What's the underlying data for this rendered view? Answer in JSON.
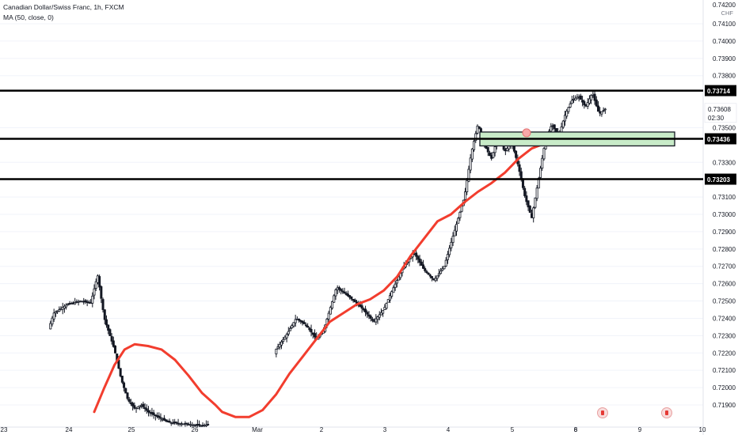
{
  "legend": {
    "symbol_line": "Canadian Dollar/Swiss Franc, 1h, FXCM",
    "indicator_line": "MA (50, close, 0)"
  },
  "price_axis": {
    "currency": "CHF",
    "ticks": [
      "0.74100",
      "0.74000",
      "0.73900",
      "0.73800",
      "0.73500",
      "0.73300",
      "0.73100",
      "0.73000",
      "0.72900",
      "0.72800",
      "0.72700",
      "0.72600",
      "0.72500",
      "0.72400",
      "0.72300",
      "0.72200",
      "0.72100",
      "0.72000",
      "0.71900"
    ],
    "current_price_label": "0.73608",
    "countdown_label": "02:30",
    "top_partial_label": "0.74200"
  },
  "time_axis": {
    "ticks": [
      {
        "label": "23",
        "i": 0
      },
      {
        "label": "24",
        "i": 1
      },
      {
        "label": "25",
        "i": 2
      },
      {
        "label": "26",
        "i": 3
      },
      {
        "label": "Mar",
        "i": 4
      },
      {
        "label": "2",
        "i": 5
      },
      {
        "label": "3",
        "i": 6
      },
      {
        "label": "4",
        "i": 7
      },
      {
        "label": "5",
        "i": 8
      },
      {
        "label": "6",
        "i": 9
      },
      {
        "label": "8",
        "i": 10
      },
      {
        "label": "9",
        "i": 11
      },
      {
        "label": "10",
        "i": 12
      }
    ]
  },
  "levels": [
    {
      "price": 0.73714,
      "label": "0.73714"
    },
    {
      "price": 0.73436,
      "label": "0.73436"
    },
    {
      "price": 0.73203,
      "label": "0.73203"
    }
  ],
  "colors": {
    "up": "#26a69a",
    "down": "#26a69a",
    "candle": "#131722",
    "ma": "#f23d2e",
    "zone_fill": "#c8ebc8",
    "zone_border": "#131722",
    "level": "#000000",
    "axis_text": "#131722",
    "grid": "#f0f3fa"
  },
  "events": [
    {
      "icon": "canada-flag-icon"
    },
    {
      "icon": "canada-flag-icon"
    }
  ],
  "chart_data": {
    "type": "candlestick",
    "title": "Canadian Dollar/Swiss Franc, 1h, FXCM",
    "series": [
      {
        "name": "MA (50, close, 0)"
      }
    ],
    "ylim": [
      0.7185,
      0.7425
    ],
    "close_path": [
      [
        0,
        0.7188
      ],
      [
        0.05,
        0.7193
      ],
      [
        0.09,
        0.7205
      ],
      [
        0.13,
        0.7225
      ],
      [
        0.16,
        0.7243
      ],
      [
        0.2,
        0.7248
      ],
      [
        0.24,
        0.725
      ],
      [
        0.27,
        0.7249
      ],
      [
        0.29,
        0.7265
      ],
      [
        0.31,
        0.724
      ],
      [
        0.34,
        0.7222
      ],
      [
        0.36,
        0.7205
      ],
      [
        0.38,
        0.7193
      ],
      [
        0.4,
        0.7188
      ],
      [
        0.42,
        0.719
      ],
      [
        0.44,
        0.7186
      ],
      [
        0.5,
        0.718
      ],
      [
        0.6,
        0.7178
      ],
      [
        0.7,
        0.7182
      ],
      [
        0.76,
        0.7184
      ],
      [
        0.78,
        0.7195
      ],
      [
        0.8,
        0.721
      ],
      [
        0.82,
        0.7222
      ],
      [
        0.85,
        0.723
      ],
      [
        0.88,
        0.724
      ],
      [
        0.91,
        0.7236
      ],
      [
        0.94,
        0.7228
      ],
      [
        0.96,
        0.7232
      ],
      [
        0.98,
        0.7245
      ],
      [
        1.0,
        0.7258
      ],
      [
        1.04,
        0.7252
      ],
      [
        1.08,
        0.7245
      ],
      [
        1.11,
        0.7238
      ],
      [
        1.14,
        0.7245
      ],
      [
        1.17,
        0.7258
      ],
      [
        1.2,
        0.727
      ],
      [
        1.23,
        0.7278
      ],
      [
        1.26,
        0.7268
      ],
      [
        1.29,
        0.7262
      ],
      [
        1.32,
        0.727
      ],
      [
        1.35,
        0.729
      ],
      [
        1.38,
        0.731
      ],
      [
        1.4,
        0.7335
      ],
      [
        1.42,
        0.7352
      ],
      [
        1.44,
        0.734
      ],
      [
        1.46,
        0.7332
      ],
      [
        1.48,
        0.7345
      ],
      [
        1.5,
        0.7336
      ],
      [
        1.52,
        0.7342
      ],
      [
        1.54,
        0.7328
      ],
      [
        1.56,
        0.731
      ],
      [
        1.58,
        0.7298
      ],
      [
        1.6,
        0.732
      ],
      [
        1.62,
        0.7342
      ],
      [
        1.64,
        0.7352
      ],
      [
        1.66,
        0.7345
      ],
      [
        1.68,
        0.7358
      ],
      [
        1.7,
        0.7366
      ],
      [
        1.72,
        0.7368
      ],
      [
        1.74,
        0.7362
      ],
      [
        1.76,
        0.737
      ],
      [
        1.78,
        0.7358
      ],
      [
        1.8,
        0.7361
      ]
    ],
    "ma_path": [
      [
        0.28,
        0.7186
      ],
      [
        0.31,
        0.72
      ],
      [
        0.34,
        0.7213
      ],
      [
        0.37,
        0.7222
      ],
      [
        0.4,
        0.7225
      ],
      [
        0.44,
        0.7224
      ],
      [
        0.48,
        0.7222
      ],
      [
        0.52,
        0.7216
      ],
      [
        0.56,
        0.7207
      ],
      [
        0.6,
        0.7197
      ],
      [
        0.64,
        0.719
      ],
      [
        0.66,
        0.7186
      ],
      [
        0.7,
        0.7183
      ],
      [
        0.74,
        0.7183
      ],
      [
        0.78,
        0.7187
      ],
      [
        0.82,
        0.7196
      ],
      [
        0.86,
        0.7208
      ],
      [
        0.9,
        0.7218
      ],
      [
        0.94,
        0.7228
      ],
      [
        0.98,
        0.7238
      ],
      [
        1.02,
        0.7243
      ],
      [
        1.06,
        0.7248
      ],
      [
        1.1,
        0.7251
      ],
      [
        1.14,
        0.7256
      ],
      [
        1.18,
        0.7264
      ],
      [
        1.22,
        0.7276
      ],
      [
        1.26,
        0.7286
      ],
      [
        1.3,
        0.7296
      ],
      [
        1.34,
        0.73
      ],
      [
        1.38,
        0.7307
      ],
      [
        1.42,
        0.7313
      ],
      [
        1.46,
        0.7318
      ],
      [
        1.5,
        0.7324
      ],
      [
        1.54,
        0.7332
      ],
      [
        1.58,
        0.7338
      ],
      [
        1.62,
        0.7341
      ]
    ],
    "zone": {
      "from": 0.73395,
      "to": 0.73475
    }
  }
}
